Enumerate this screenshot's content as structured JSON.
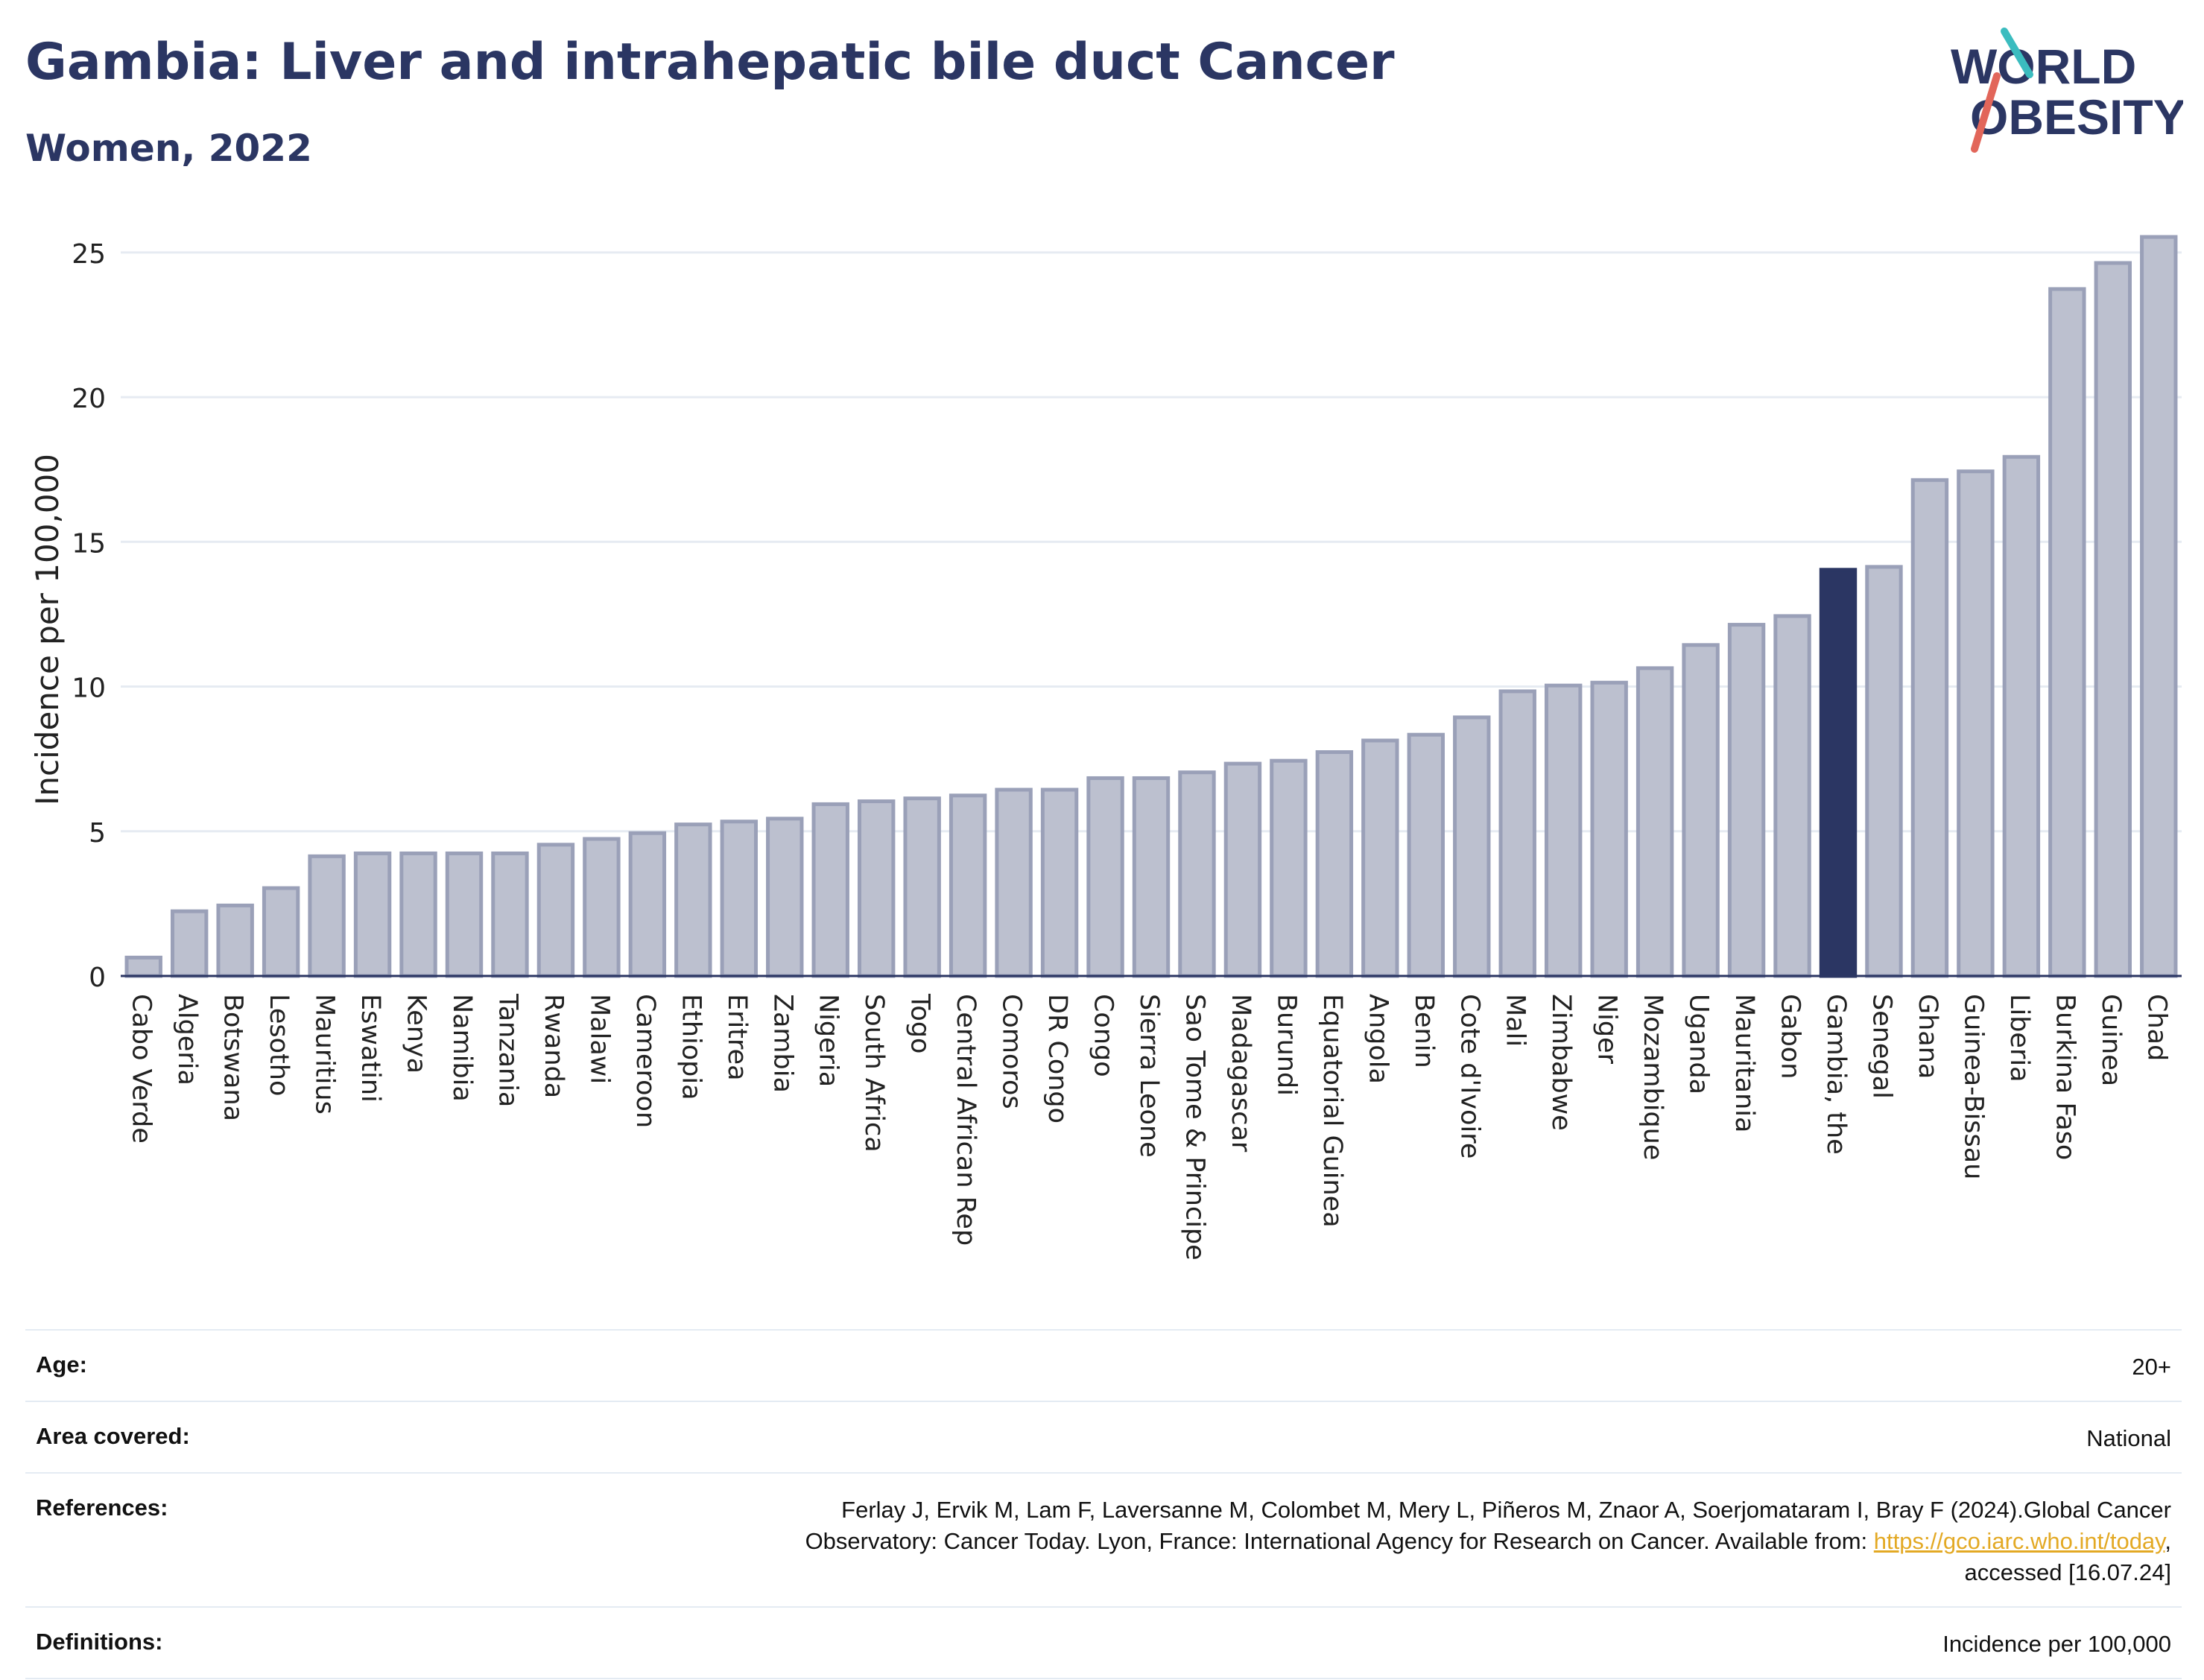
{
  "header": {
    "title": "Gambia: Liver and intrahepatic bile duct Cancer",
    "subtitle": "Women, 2022"
  },
  "logo": {
    "line1": "WORLD",
    "line2": "OBESITY",
    "icon": "world-obesity-logo"
  },
  "colors": {
    "bar_default": "#bcc0cf",
    "bar_border": "#9aa0b8",
    "bar_highlight": "#2b3663",
    "title": "#2b3663",
    "link": "#e3a924"
  },
  "chart_data": {
    "type": "bar",
    "title": "Gambia: Liver and intrahepatic bile duct Cancer",
    "subtitle": "Women, 2022",
    "xlabel": "",
    "ylabel": "Incidence per 100,000",
    "ylim": [
      0,
      26
    ],
    "yticks": [
      0,
      5,
      10,
      15,
      20,
      25
    ],
    "grid": true,
    "highlight": "Gambia, the",
    "categories": [
      "Cabo Verde",
      "Algeria",
      "Botswana",
      "Lesotho",
      "Mauritius",
      "Eswatini",
      "Kenya",
      "Namibia",
      "Tanzania",
      "Rwanda",
      "Malawi",
      "Cameroon",
      "Ethiopia",
      "Eritrea",
      "Zambia",
      "Nigeria",
      "South Africa",
      "Togo",
      "Central African Rep",
      "Comoros",
      "DR Congo",
      "Congo",
      "Sierra Leone",
      "Sao Tome & Principe",
      "Madagascar",
      "Burundi",
      "Equatorial Guinea",
      "Angola",
      "Benin",
      "Cote d'Ivoire",
      "Mali",
      "Zimbabwe",
      "Niger",
      "Mozambique",
      "Uganda",
      "Mauritania",
      "Gabon",
      "Gambia, the",
      "Senegal",
      "Ghana",
      "Guinea-Bissau",
      "Liberia",
      "Burkina Faso",
      "Guinea",
      "Chad"
    ],
    "values": [
      0.7,
      2.3,
      2.5,
      3.1,
      4.2,
      4.3,
      4.3,
      4.3,
      4.3,
      4.6,
      4.8,
      5.0,
      5.3,
      5.4,
      5.5,
      6.0,
      6.1,
      6.2,
      6.3,
      6.5,
      6.5,
      6.9,
      6.9,
      7.1,
      7.4,
      7.5,
      7.8,
      8.2,
      8.4,
      9.0,
      9.9,
      10.1,
      10.2,
      10.7,
      11.5,
      12.2,
      12.5,
      14.1,
      14.2,
      17.2,
      17.5,
      18.0,
      23.8,
      24.7,
      25.6
    ]
  },
  "meta": {
    "age_label": "Age:",
    "age_value": "20+",
    "area_label": "Area covered:",
    "area_value": "National",
    "references_label": "References:",
    "references_line1": "Ferlay J, Ervik M, Lam F, Laversanne M, Colombet M, Mery L, Piñeros M, Znaor A, Soerjomataram I, Bray F (2024).Global Cancer",
    "references_line2": "Observatory: Cancer Today. Lyon, France: International Agency for Research on Cancer. Available from: ",
    "references_link": "https://gco.iarc.who.int/today",
    "references_line2_end": ",",
    "references_line3": "accessed [16.07.24]",
    "definitions_label": "Definitions:",
    "definitions_value": "Incidence per 100,000"
  }
}
